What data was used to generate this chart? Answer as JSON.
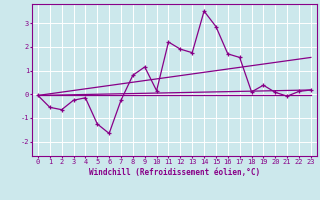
{
  "xlabel": "Windchill (Refroidissement éolien,°C)",
  "bg_color": "#cce8ec",
  "line_color": "#880088",
  "grid_color": "#ffffff",
  "xlim": [
    -0.5,
    23.5
  ],
  "ylim": [
    -2.6,
    3.8
  ],
  "yticks": [
    -2,
    -1,
    0,
    1,
    2,
    3
  ],
  "xticks": [
    0,
    1,
    2,
    3,
    4,
    5,
    6,
    7,
    8,
    9,
    10,
    11,
    12,
    13,
    14,
    15,
    16,
    17,
    18,
    19,
    20,
    21,
    22,
    23
  ],
  "line1_x": [
    0,
    1,
    2,
    3,
    4,
    5,
    6,
    7,
    8,
    9,
    10,
    11,
    12,
    13,
    14,
    15,
    16,
    17,
    18,
    19,
    20,
    21,
    22,
    23
  ],
  "line1_y": [
    -0.05,
    -0.55,
    -0.65,
    -0.25,
    -0.15,
    -1.25,
    -1.65,
    -0.25,
    0.8,
    1.15,
    0.15,
    2.2,
    1.9,
    1.75,
    3.5,
    2.85,
    1.7,
    1.55,
    0.1,
    0.38,
    0.08,
    -0.08,
    0.12,
    0.18
  ],
  "line2_x": [
    0,
    23
  ],
  "line2_y": [
    -0.05,
    0.18
  ],
  "line3_x": [
    0,
    23
  ],
  "line3_y": [
    -0.05,
    1.55
  ],
  "line4_x": [
    0,
    23
  ],
  "line4_y": [
    -0.05,
    -0.05
  ]
}
